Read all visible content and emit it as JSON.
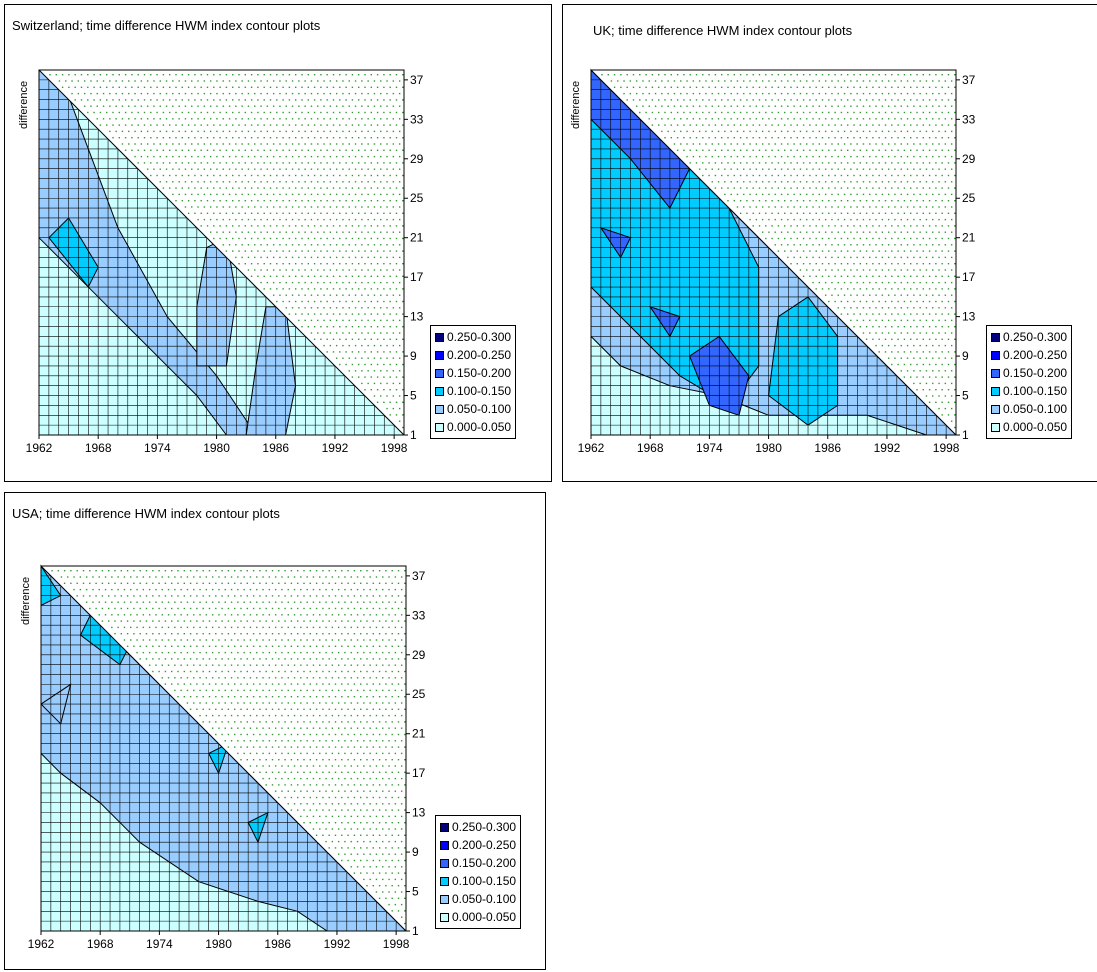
{
  "colors": {
    "band_0": "#ccffff",
    "band_1": "#99ccff",
    "band_2": "#00ccff",
    "band_3": "#3366ff",
    "band_4": "#0000ff",
    "band_5": "#000080",
    "upper_dots": "#339933",
    "grid": "#000000"
  },
  "chart_data": [
    {
      "type": "heatmap",
      "title": "Switzerland; time difference HWM index contour plots",
      "ylabel": "difference",
      "xlabel": "",
      "x_ticks": [
        "1962",
        "1968",
        "1974",
        "1980",
        "1986",
        "1992",
        "1998"
      ],
      "y_ticks": [
        "1",
        "5",
        "9",
        "13",
        "17",
        "21",
        "25",
        "29",
        "33",
        "37"
      ],
      "xlim": [
        1962,
        1999
      ],
      "ylim": [
        1,
        38
      ],
      "legend": [
        "0.250-0.300",
        "0.200-0.250",
        "0.150-0.200",
        "0.100-0.150",
        "0.050-0.100",
        "0.000-0.050"
      ],
      "legend_position": "right",
      "upper_triangle": "empty",
      "bands": [
        {
          "range": "0.050-0.100",
          "polygon": [
            [
              1962,
              38
            ],
            [
              1964,
              38
            ],
            [
              1967,
              30
            ],
            [
              1970,
              22
            ],
            [
              1975,
              13
            ],
            [
              1980,
              7
            ],
            [
              1984,
              1
            ],
            [
              1981,
              1
            ],
            [
              1978,
              5
            ],
            [
              1972,
              11
            ],
            [
              1966,
              17
            ],
            [
              1962,
              21
            ]
          ]
        },
        {
          "range": "0.050-0.100",
          "polygon": [
            [
              1983,
              1
            ],
            [
              1987,
              1
            ],
            [
              1988,
              6
            ],
            [
              1987,
              14
            ],
            [
              1985,
              14
            ],
            [
              1984,
              8
            ]
          ]
        },
        {
          "range": "0.050-0.100",
          "polygon": [
            [
              1978,
              8
            ],
            [
              1981,
              8
            ],
            [
              1982,
              15
            ],
            [
              1981,
              21
            ],
            [
              1979,
              20
            ],
            [
              1978,
              14
            ]
          ]
        },
        {
          "range": "0.100-0.150",
          "polygon": [
            [
              1963,
              21
            ],
            [
              1965,
              23
            ],
            [
              1968,
              18
            ],
            [
              1967,
              16
            ]
          ]
        }
      ]
    },
    {
      "type": "heatmap",
      "title": "UK; time difference HWM index contour plots",
      "ylabel": "difference",
      "xlabel": "",
      "x_ticks": [
        "1962",
        "1968",
        "1974",
        "1980",
        "1986",
        "1992",
        "1998"
      ],
      "y_ticks": [
        "1",
        "5",
        "9",
        "13",
        "17",
        "21",
        "25",
        "29",
        "33",
        "37"
      ],
      "xlim": [
        1962,
        1999
      ],
      "ylim": [
        1,
        38
      ],
      "legend": [
        "0.250-0.300",
        "0.200-0.250",
        "0.150-0.200",
        "0.100-0.150",
        "0.050-0.100",
        "0.000-0.050"
      ],
      "legend_position": "right",
      "upper_triangle": "empty",
      "bands": [
        {
          "range": "0.050-0.100",
          "polygon": [
            [
              1962,
              38
            ],
            [
              1999,
              1
            ],
            [
              1996,
              1
            ],
            [
              1990,
              3
            ],
            [
              1985,
              3
            ],
            [
              1980,
              3
            ],
            [
              1975,
              5
            ],
            [
              1970,
              6
            ],
            [
              1965,
              8
            ],
            [
              1962,
              11
            ]
          ]
        },
        {
          "range": "0.100-0.150",
          "polygon": [
            [
              1962,
              38
            ],
            [
              1969,
              31
            ],
            [
              1976,
              24
            ],
            [
              1979,
              18
            ],
            [
              1979,
              8
            ],
            [
              1976,
              4
            ],
            [
              1971,
              7
            ],
            [
              1966,
              12
            ],
            [
              1962,
              16
            ]
          ]
        },
        {
          "range": "0.100-0.150",
          "polygon": [
            [
              1980,
              5
            ],
            [
              1984,
              2
            ],
            [
              1987,
              4
            ],
            [
              1987,
              11
            ],
            [
              1984,
              15
            ],
            [
              1981,
              13
            ]
          ]
        },
        {
          "range": "0.150-0.200",
          "polygon": [
            [
              1962,
              38
            ],
            [
              1968,
              32
            ],
            [
              1972,
              28
            ],
            [
              1970,
              24
            ],
            [
              1966,
              29
            ],
            [
              1962,
              33
            ]
          ]
        },
        {
          "range": "0.150-0.200",
          "polygon": [
            [
              1972,
              9
            ],
            [
              1974,
              4
            ],
            [
              1977,
              3
            ],
            [
              1978,
              7
            ],
            [
              1975,
              11
            ]
          ]
        },
        {
          "range": "0.150-0.200",
          "polygon": [
            [
              1963,
              22
            ],
            [
              1965,
              19
            ],
            [
              1966,
              21
            ]
          ]
        },
        {
          "range": "0.150-0.200",
          "polygon": [
            [
              1968,
              14
            ],
            [
              1970,
              11
            ],
            [
              1971,
              13
            ]
          ]
        }
      ]
    },
    {
      "type": "heatmap",
      "title": "USA; time difference HWM index contour plots",
      "ylabel": "difference",
      "xlabel": "",
      "x_ticks": [
        "1962",
        "1968",
        "1974",
        "1980",
        "1986",
        "1992",
        "1998"
      ],
      "y_ticks": [
        "1",
        "5",
        "9",
        "13",
        "17",
        "21",
        "25",
        "29",
        "33",
        "37"
      ],
      "xlim": [
        1962,
        1999
      ],
      "ylim": [
        1,
        38
      ],
      "legend": [
        "0.250-0.300",
        "0.200-0.250",
        "0.150-0.200",
        "0.100-0.150",
        "0.050-0.100",
        "0.000-0.050"
      ],
      "legend_position": "right",
      "upper_triangle": "empty",
      "bands": [
        {
          "range": "0.050-0.100",
          "polygon": [
            [
              1962,
              38
            ],
            [
              1999,
              1
            ],
            [
              1991,
              1
            ],
            [
              1988,
              3
            ],
            [
              1984,
              4
            ],
            [
              1978,
              6
            ],
            [
              1972,
              10
            ],
            [
              1968,
              14
            ],
            [
              1964,
              17
            ],
            [
              1962,
              19
            ]
          ]
        },
        {
          "range": "0.050-0.100",
          "polygon": [
            [
              1962,
              24
            ],
            [
              1965,
              26
            ],
            [
              1964,
              22
            ]
          ]
        },
        {
          "range": "0.100-0.150",
          "polygon": [
            [
              1962,
              38
            ],
            [
              1964,
              35
            ],
            [
              1962,
              34
            ]
          ]
        },
        {
          "range": "0.100-0.150",
          "polygon": [
            [
              1967,
              33
            ],
            [
              1971,
              30
            ],
            [
              1970,
              28
            ],
            [
              1966,
              31
            ]
          ]
        },
        {
          "range": "0.100-0.150",
          "polygon": [
            [
              1979,
              19
            ],
            [
              1981,
              20
            ],
            [
              1980,
              17
            ]
          ]
        },
        {
          "range": "0.100-0.150",
          "polygon": [
            [
              1983,
              12
            ],
            [
              1985,
              13
            ],
            [
              1984,
              10
            ]
          ]
        }
      ]
    }
  ]
}
